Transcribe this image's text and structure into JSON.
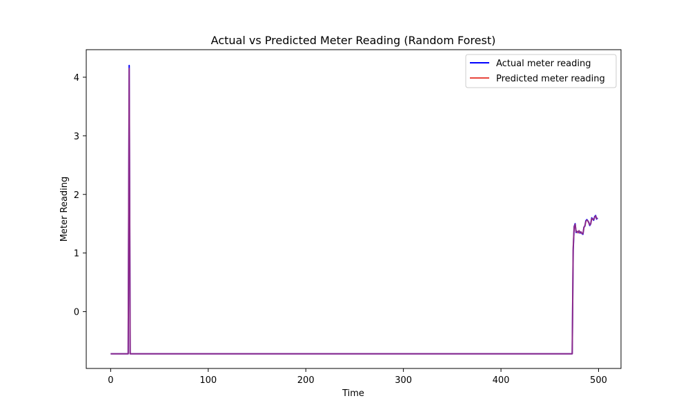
{
  "chart_data": {
    "type": "line",
    "title": "Actual vs Predicted Meter Reading (Random Forest)",
    "xlabel": "Time",
    "ylabel": "Meter Reading",
    "xlim": [
      -25,
      523
    ],
    "ylim": [
      -0.97,
      4.47
    ],
    "xticks": [
      0,
      100,
      200,
      300,
      400,
      500
    ],
    "yticks": [
      0,
      1,
      2,
      3,
      4
    ],
    "grid": false,
    "legend_position": "top-right",
    "series": [
      {
        "name": "Actual meter reading",
        "color": "#0000ff",
        "x": [
          0,
          18,
          19,
          20,
          473,
          474,
          475,
          476,
          477,
          478,
          479,
          480,
          481,
          482,
          483,
          484,
          485,
          486,
          487,
          488,
          489,
          490,
          491,
          492,
          493,
          494,
          495,
          496,
          497,
          498,
          499
        ],
        "y": [
          -0.72,
          -0.72,
          4.2,
          -0.72,
          -0.72,
          1.05,
          1.45,
          1.5,
          1.35,
          1.37,
          1.35,
          1.38,
          1.34,
          1.36,
          1.33,
          1.32,
          1.44,
          1.46,
          1.55,
          1.57,
          1.55,
          1.52,
          1.47,
          1.5,
          1.6,
          1.58,
          1.56,
          1.62,
          1.64,
          1.58,
          1.6
        ]
      },
      {
        "name": "Predicted meter reading",
        "color": "#e8453c",
        "x": [
          0,
          18,
          19,
          20,
          473,
          474,
          475,
          476,
          477,
          478,
          479,
          480,
          481,
          482,
          483,
          484,
          485,
          486,
          487,
          488,
          489,
          490,
          491,
          492,
          493,
          494,
          495,
          496,
          497,
          498,
          499
        ],
        "y": [
          -0.72,
          -0.72,
          4.15,
          -0.72,
          -0.72,
          1.08,
          1.44,
          1.49,
          1.36,
          1.37,
          1.34,
          1.38,
          1.35,
          1.36,
          1.33,
          1.33,
          1.43,
          1.47,
          1.54,
          1.56,
          1.55,
          1.51,
          1.48,
          1.5,
          1.59,
          1.57,
          1.57,
          1.61,
          1.63,
          1.59,
          1.59
        ]
      }
    ]
  },
  "colors": {
    "overlap_line": "#a3005c"
  }
}
